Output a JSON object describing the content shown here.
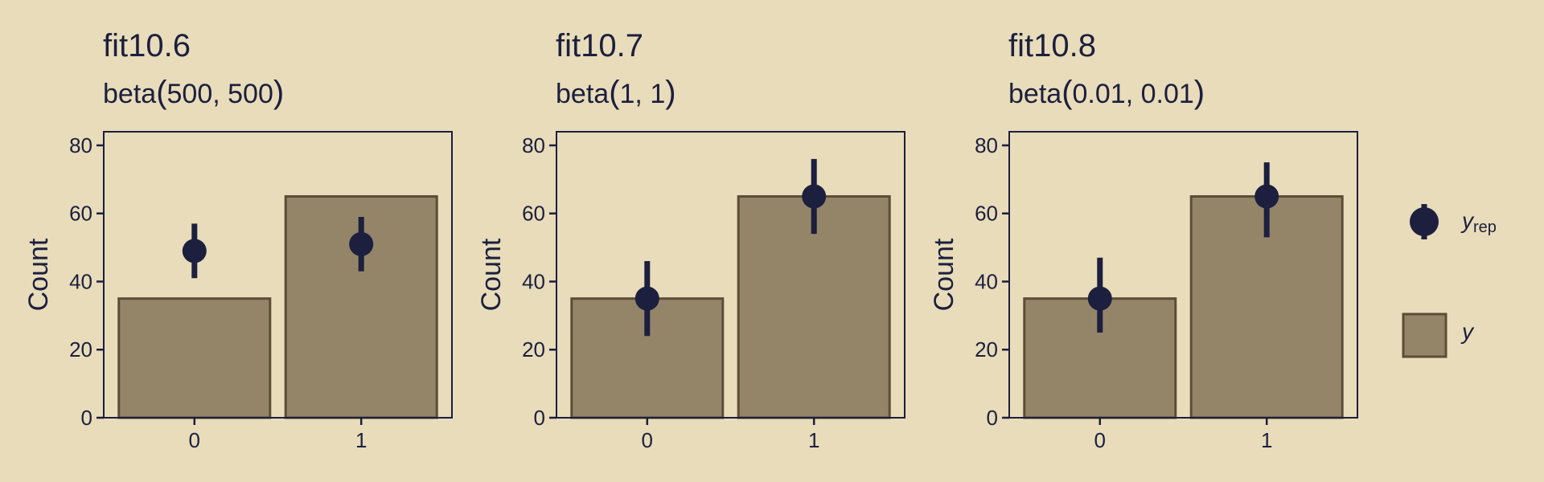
{
  "colors": {
    "background": "#e8dcba",
    "bar_fill": "#948569",
    "bar_stroke": "#5b4d36",
    "point": "#1c1f3e",
    "frame": "#1c1f3e"
  },
  "legend": {
    "position": "right",
    "items": [
      {
        "id": "yrep",
        "label": "y",
        "subscript": "rep",
        "shape": "point-range"
      },
      {
        "id": "y",
        "label": "y",
        "subscript": "",
        "shape": "bar"
      }
    ]
  },
  "chart_data": [
    {
      "type": "bar",
      "title": "fit10.6",
      "subtitle": {
        "prefix": "beta",
        "args": "500, 500"
      },
      "ylabel": "Count",
      "xlabel": "",
      "categories": [
        "0",
        "1"
      ],
      "ylim": [
        0,
        84
      ],
      "yticks": [
        0,
        20,
        40,
        60,
        80
      ],
      "grid": false,
      "series": [
        {
          "name": "y",
          "kind": "bar",
          "values": [
            35,
            65
          ]
        },
        {
          "name": "y_rep",
          "kind": "pointrange",
          "points": [
            {
              "x": "0",
              "y": 49,
              "low": 41,
              "high": 57
            },
            {
              "x": "1",
              "y": 51,
              "low": 43,
              "high": 59
            }
          ]
        }
      ]
    },
    {
      "type": "bar",
      "title": "fit10.7",
      "subtitle": {
        "prefix": "beta",
        "args": "1, 1"
      },
      "ylabel": "Count",
      "xlabel": "",
      "categories": [
        "0",
        "1"
      ],
      "ylim": [
        0,
        84
      ],
      "yticks": [
        0,
        20,
        40,
        60,
        80
      ],
      "grid": false,
      "series": [
        {
          "name": "y",
          "kind": "bar",
          "values": [
            35,
            65
          ]
        },
        {
          "name": "y_rep",
          "kind": "pointrange",
          "points": [
            {
              "x": "0",
              "y": 35,
              "low": 24,
              "high": 46
            },
            {
              "x": "1",
              "y": 65,
              "low": 54,
              "high": 76
            }
          ]
        }
      ]
    },
    {
      "type": "bar",
      "title": "fit10.8",
      "subtitle": {
        "prefix": "beta",
        "args": "0.01, 0.01"
      },
      "ylabel": "Count",
      "xlabel": "",
      "categories": [
        "0",
        "1"
      ],
      "ylim": [
        0,
        84
      ],
      "yticks": [
        0,
        20,
        40,
        60,
        80
      ],
      "grid": false,
      "series": [
        {
          "name": "y",
          "kind": "bar",
          "values": [
            35,
            65
          ]
        },
        {
          "name": "y_rep",
          "kind": "pointrange",
          "points": [
            {
              "x": "0",
              "y": 35,
              "low": 25,
              "high": 47
            },
            {
              "x": "1",
              "y": 65,
              "low": 53,
              "high": 75
            }
          ]
        }
      ]
    }
  ]
}
